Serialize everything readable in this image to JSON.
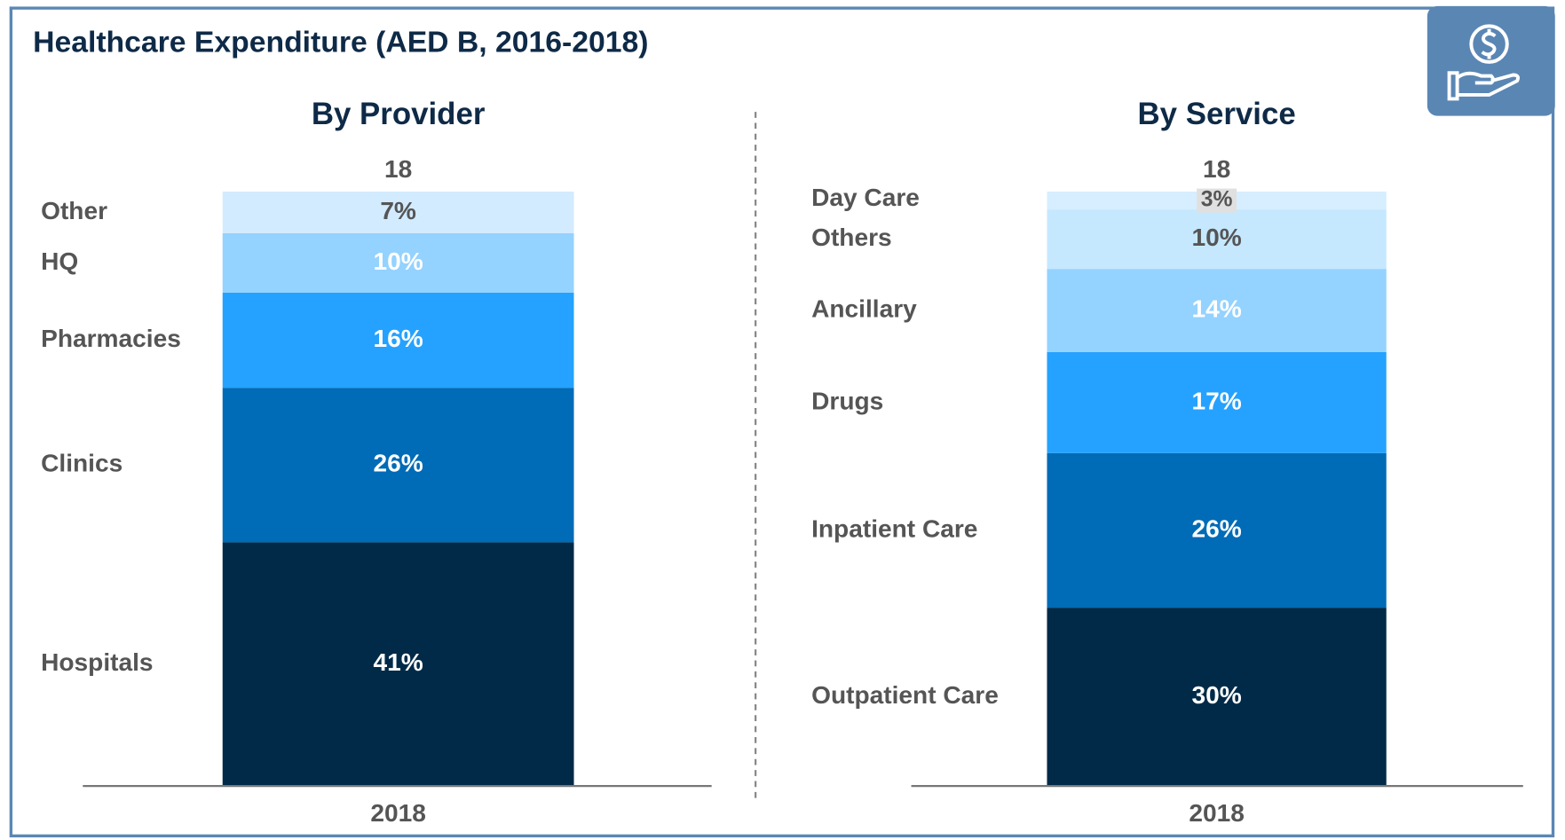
{
  "title": "Healthcare Expenditure (AED B, 2016-2018)",
  "chart_data": [
    {
      "type": "stacked_bar",
      "title": "By Provider",
      "categories": [
        "2018"
      ],
      "total": 18,
      "series": [
        {
          "name": "Hospitals",
          "color": "#002a48",
          "values": [
            41
          ],
          "value_labels": [
            "41%"
          ]
        },
        {
          "name": "Clinics",
          "color": "#006bb6",
          "values": [
            26
          ],
          "value_labels": [
            "26%"
          ]
        },
        {
          "name": "Pharmacies",
          "color": "#25a2ff",
          "values": [
            16
          ],
          "value_labels": [
            "16%"
          ]
        },
        {
          "name": "HQ",
          "color": "#94d2ff",
          "values": [
            10
          ],
          "value_labels": [
            "10%"
          ]
        },
        {
          "name": "Other",
          "color": "#d2ebff",
          "values": [
            7
          ],
          "value_labels": [
            "7%"
          ]
        }
      ]
    },
    {
      "type": "stacked_bar",
      "title": "By Service",
      "categories": [
        "2018"
      ],
      "total": 18,
      "series": [
        {
          "name": "Outpatient Care",
          "color": "#002a48",
          "values": [
            30
          ],
          "value_labels": [
            "30%"
          ]
        },
        {
          "name": "Inpatient Care",
          "color": "#006bb6",
          "values": [
            26
          ],
          "value_labels": [
            "26%"
          ]
        },
        {
          "name": "Drugs",
          "color": "#25a2ff",
          "values": [
            17
          ],
          "value_labels": [
            "17%"
          ]
        },
        {
          "name": "Ancillary",
          "color": "#94d2ff",
          "values": [
            14
          ],
          "value_labels": [
            "14%"
          ]
        },
        {
          "name": "Others",
          "color": "#c5e8ff",
          "values": [
            10
          ],
          "value_labels": [
            "10%"
          ]
        },
        {
          "name": "Day Care",
          "color": "#d6eeff",
          "values": [
            3
          ],
          "value_labels": [
            "3%"
          ]
        }
      ]
    }
  ]
}
